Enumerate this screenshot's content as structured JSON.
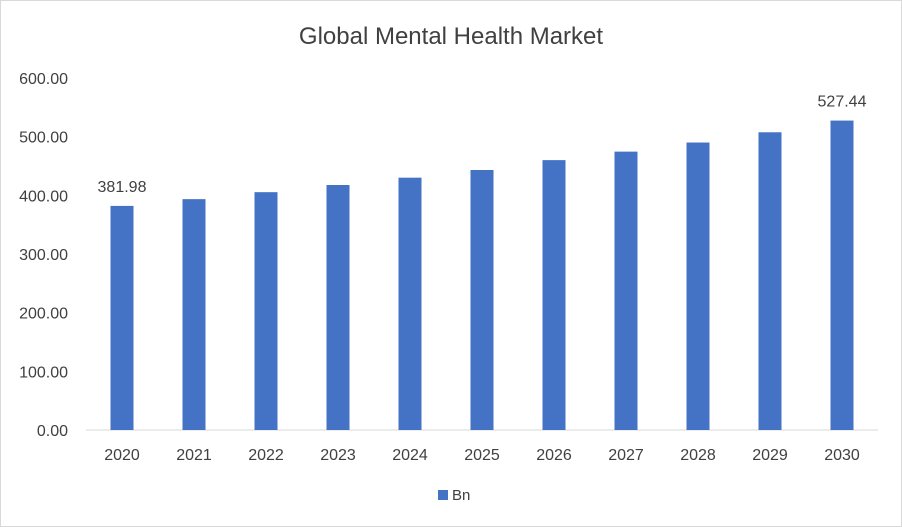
{
  "chart_data": {
    "type": "bar",
    "title": "Global Mental Health Market",
    "categories": [
      "2020",
      "2021",
      "2022",
      "2023",
      "2024",
      "2025",
      "2026",
      "2027",
      "2028",
      "2029",
      "2030"
    ],
    "series": [
      {
        "name": "Bn",
        "values": [
          381.98,
          393.5,
          405.4,
          417.6,
          430.1,
          443.2,
          460.0,
          474.5,
          490.0,
          507.5,
          527.44
        ]
      }
    ],
    "data_labels": {
      "2020": "381.98",
      "2030": "527.44"
    },
    "yticks": [
      "0.00",
      "100.00",
      "200.00",
      "300.00",
      "400.00",
      "500.00",
      "600.00"
    ],
    "ylim": [
      0,
      600
    ],
    "xlabel": "",
    "ylabel": "",
    "grid": false,
    "legend_position": "bottom",
    "colors": {
      "bar": "#4472c4",
      "axis": "#d9d9d9",
      "text": "#404040"
    }
  }
}
